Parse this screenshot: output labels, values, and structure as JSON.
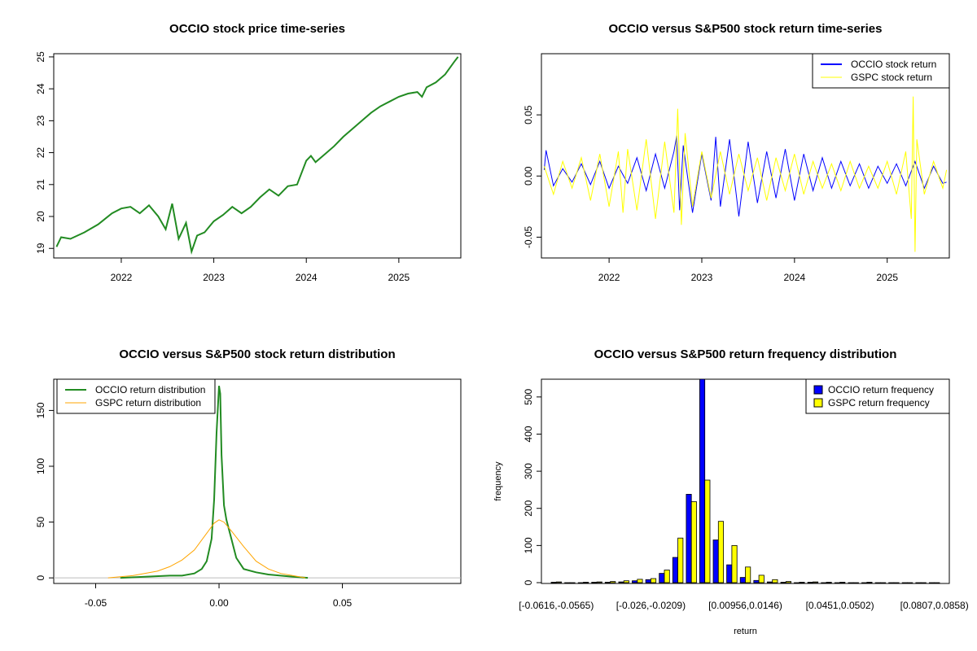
{
  "chart_data": [
    {
      "id": "price",
      "type": "line",
      "title": "OCCIO stock price time-series",
      "xlabel": "",
      "ylabel": "",
      "xlim": [
        2021.27,
        2025.67
      ],
      "ylim": [
        18.7,
        25.1
      ],
      "x_ticks": [
        2022,
        2023,
        2024,
        2025
      ],
      "x_tick_labels": [
        "2022",
        "2023",
        "2024",
        "2025"
      ],
      "y_ticks": [
        19,
        20,
        21,
        22,
        23,
        24,
        25
      ],
      "y_tick_labels": [
        "19",
        "20",
        "21",
        "22",
        "23",
        "24",
        "25"
      ],
      "series": [
        {
          "name": "OCCIO price",
          "color": "#228B22",
          "x": [
            2021.3,
            2021.35,
            2021.45,
            2021.6,
            2021.75,
            2021.9,
            2022.0,
            2022.1,
            2022.2,
            2022.3,
            2022.4,
            2022.48,
            2022.55,
            2022.62,
            2022.7,
            2022.76,
            2022.82,
            2022.9,
            2023.0,
            2023.1,
            2023.2,
            2023.3,
            2023.4,
            2023.5,
            2023.6,
            2023.7,
            2023.8,
            2023.9,
            2024.0,
            2024.05,
            2024.1,
            2024.2,
            2024.3,
            2024.4,
            2024.5,
            2024.6,
            2024.7,
            2024.8,
            2024.9,
            2025.0,
            2025.1,
            2025.2,
            2025.25,
            2025.3,
            2025.4,
            2025.5,
            2025.6,
            2025.64
          ],
          "y": [
            19.05,
            19.35,
            19.3,
            19.5,
            19.75,
            20.1,
            20.25,
            20.3,
            20.1,
            20.35,
            20.0,
            19.6,
            20.4,
            19.3,
            19.8,
            18.9,
            19.4,
            19.5,
            19.85,
            20.05,
            20.3,
            20.1,
            20.3,
            20.6,
            20.85,
            20.65,
            20.95,
            21.0,
            21.75,
            21.9,
            21.7,
            21.95,
            22.2,
            22.5,
            22.75,
            23.0,
            23.25,
            23.45,
            23.6,
            23.75,
            23.85,
            23.9,
            23.75,
            24.05,
            24.2,
            24.45,
            24.85,
            25.0
          ]
        }
      ]
    },
    {
      "id": "returns",
      "type": "line",
      "title": "OCCIO versus S&P500 stock return time-series",
      "xlabel": "",
      "ylabel": "",
      "xlim": [
        2021.27,
        2025.67
      ],
      "ylim": [
        -0.067,
        0.1
      ],
      "x_ticks": [
        2022,
        2023,
        2024,
        2025
      ],
      "x_tick_labels": [
        "2022",
        "2023",
        "2024",
        "2025"
      ],
      "y_ticks": [
        -0.05,
        0.0,
        0.05
      ],
      "y_tick_labels": [
        "-0.05",
        "0.00",
        "0.05"
      ],
      "series": [
        {
          "name": "OCCIO stock return",
          "color": "#0000FF",
          "x": [
            2021.3,
            2021.32,
            2021.4,
            2021.5,
            2021.6,
            2021.7,
            2021.8,
            2021.9,
            2022.0,
            2022.1,
            2022.2,
            2022.3,
            2022.4,
            2022.5,
            2022.6,
            2022.7,
            2022.73,
            2022.76,
            2022.8,
            2022.9,
            2023.0,
            2023.1,
            2023.15,
            2023.2,
            2023.3,
            2023.4,
            2023.5,
            2023.6,
            2023.7,
            2023.8,
            2023.9,
            2024.0,
            2024.1,
            2024.2,
            2024.3,
            2024.4,
            2024.5,
            2024.6,
            2024.7,
            2024.8,
            2024.9,
            2025.0,
            2025.1,
            2025.2,
            2025.3,
            2025.4,
            2025.5,
            2025.6,
            2025.64
          ],
          "y": [
            0.005,
            0.021,
            -0.008,
            0.006,
            -0.005,
            0.01,
            -0.007,
            0.012,
            -0.01,
            0.008,
            -0.006,
            0.015,
            -0.012,
            0.018,
            -0.01,
            0.02,
            0.033,
            -0.028,
            0.025,
            -0.03,
            0.018,
            -0.02,
            0.032,
            -0.025,
            0.03,
            -0.033,
            0.028,
            -0.022,
            0.02,
            -0.018,
            0.022,
            -0.02,
            0.018,
            -0.012,
            0.015,
            -0.01,
            0.012,
            -0.008,
            0.01,
            -0.01,
            0.008,
            -0.006,
            0.01,
            -0.008,
            0.012,
            -0.01,
            0.008,
            -0.006,
            -0.005
          ]
        },
        {
          "name": "GSPC stock return",
          "color": "#FFFF00",
          "x": [
            2021.3,
            2021.4,
            2021.5,
            2021.6,
            2021.7,
            2021.8,
            2021.9,
            2022.0,
            2022.1,
            2022.15,
            2022.2,
            2022.3,
            2022.4,
            2022.5,
            2022.6,
            2022.7,
            2022.74,
            2022.78,
            2022.82,
            2022.9,
            2023.0,
            2023.1,
            2023.2,
            2023.3,
            2023.4,
            2023.5,
            2023.6,
            2023.7,
            2023.8,
            2023.9,
            2024.0,
            2024.1,
            2024.2,
            2024.3,
            2024.4,
            2024.5,
            2024.6,
            2024.7,
            2024.8,
            2024.9,
            2025.0,
            2025.1,
            2025.2,
            2025.26,
            2025.28,
            2025.3,
            2025.32,
            2025.4,
            2025.5,
            2025.6,
            2025.64
          ],
          "y": [
            0.008,
            -0.015,
            0.012,
            -0.01,
            0.015,
            -0.02,
            0.018,
            -0.025,
            0.02,
            -0.03,
            0.022,
            -0.028,
            0.03,
            -0.035,
            0.028,
            -0.03,
            0.055,
            -0.04,
            0.035,
            -0.025,
            0.02,
            -0.018,
            0.02,
            -0.015,
            0.018,
            -0.012,
            0.015,
            -0.02,
            0.015,
            -0.012,
            0.018,
            -0.015,
            0.012,
            -0.01,
            0.01,
            -0.012,
            0.012,
            -0.01,
            0.008,
            -0.01,
            0.012,
            -0.015,
            0.02,
            -0.035,
            0.065,
            -0.062,
            0.03,
            -0.015,
            0.012,
            -0.01,
            0.005
          ]
        }
      ],
      "legend": "top-right"
    },
    {
      "id": "density",
      "type": "line",
      "title": "OCCIO versus S&P500 stock return distribution",
      "xlabel": "",
      "ylabel": "",
      "xlim": [
        -0.067,
        0.098
      ],
      "ylim": [
        -5,
        178
      ],
      "x_ticks": [
        -0.05,
        0.0,
        0.05
      ],
      "x_tick_labels": [
        "-0.05",
        "0.00",
        "0.05"
      ],
      "y_ticks": [
        0,
        50,
        100,
        150
      ],
      "y_tick_labels": [
        "0",
        "50",
        "100",
        "150"
      ],
      "series": [
        {
          "name": "OCCIO return distribution",
          "color": "#228B22",
          "x": [
            -0.04,
            -0.03,
            -0.02,
            -0.015,
            -0.01,
            -0.007,
            -0.005,
            -0.003,
            -0.002,
            -0.001,
            0.0,
            0.0005,
            0.001,
            0.002,
            0.003,
            0.005,
            0.007,
            0.01,
            0.015,
            0.02,
            0.03,
            0.036
          ],
          "y": [
            0,
            1,
            2,
            2,
            4,
            8,
            15,
            35,
            70,
            130,
            172,
            165,
            110,
            65,
            52,
            35,
            18,
            8,
            5,
            3,
            1,
            0
          ]
        },
        {
          "name": "GSPC return distribution",
          "color": "#FFA500",
          "x": [
            -0.045,
            -0.035,
            -0.025,
            -0.02,
            -0.015,
            -0.01,
            -0.005,
            -0.002,
            0.0,
            0.002,
            0.005,
            0.01,
            0.015,
            0.02,
            0.025,
            0.03,
            0.035
          ],
          "y": [
            0,
            2,
            6,
            10,
            16,
            25,
            40,
            49,
            52,
            50,
            42,
            28,
            15,
            8,
            4,
            2,
            0
          ]
        }
      ],
      "legend": "top-left"
    },
    {
      "id": "histogram",
      "type": "bar",
      "title": "OCCIO versus S&P500 return frequency distribution",
      "xlabel": "return",
      "ylabel": "frequency",
      "ylim": [
        0,
        550
      ],
      "y_ticks": [
        0,
        100,
        200,
        300,
        400,
        500
      ],
      "y_tick_labels": [
        "0",
        "100",
        "200",
        "300",
        "400",
        "500"
      ],
      "x_tick_labels": [
        "[-0.0616,-0.0565)",
        "[-0.026,-0.0209)",
        "[0.00956,0.0146)",
        "[0.0451,0.0502)",
        "[0.0807,0.0858)"
      ],
      "x_tick_positions": [
        0,
        7,
        14,
        21,
        28
      ],
      "n_bins": 29,
      "series": [
        {
          "name": "OCCIO return frequency",
          "color": "#0000FF",
          "values": [
            1,
            0,
            0,
            1,
            1,
            2,
            5,
            8,
            25,
            68,
            238,
            553,
            115,
            48,
            14,
            6,
            2,
            1,
            0,
            1,
            0,
            0,
            0,
            0,
            0,
            0,
            0,
            0,
            0
          ]
        },
        {
          "name": "GSPC return frequency",
          "color": "#FFFF00",
          "values": [
            2,
            0,
            1,
            2,
            3,
            5,
            9,
            11,
            34,
            120,
            218,
            276,
            165,
            100,
            42,
            20,
            8,
            3,
            1,
            2,
            1,
            1,
            0,
            1,
            0,
            0,
            0,
            0,
            0
          ]
        }
      ],
      "legend": "top-right"
    }
  ]
}
